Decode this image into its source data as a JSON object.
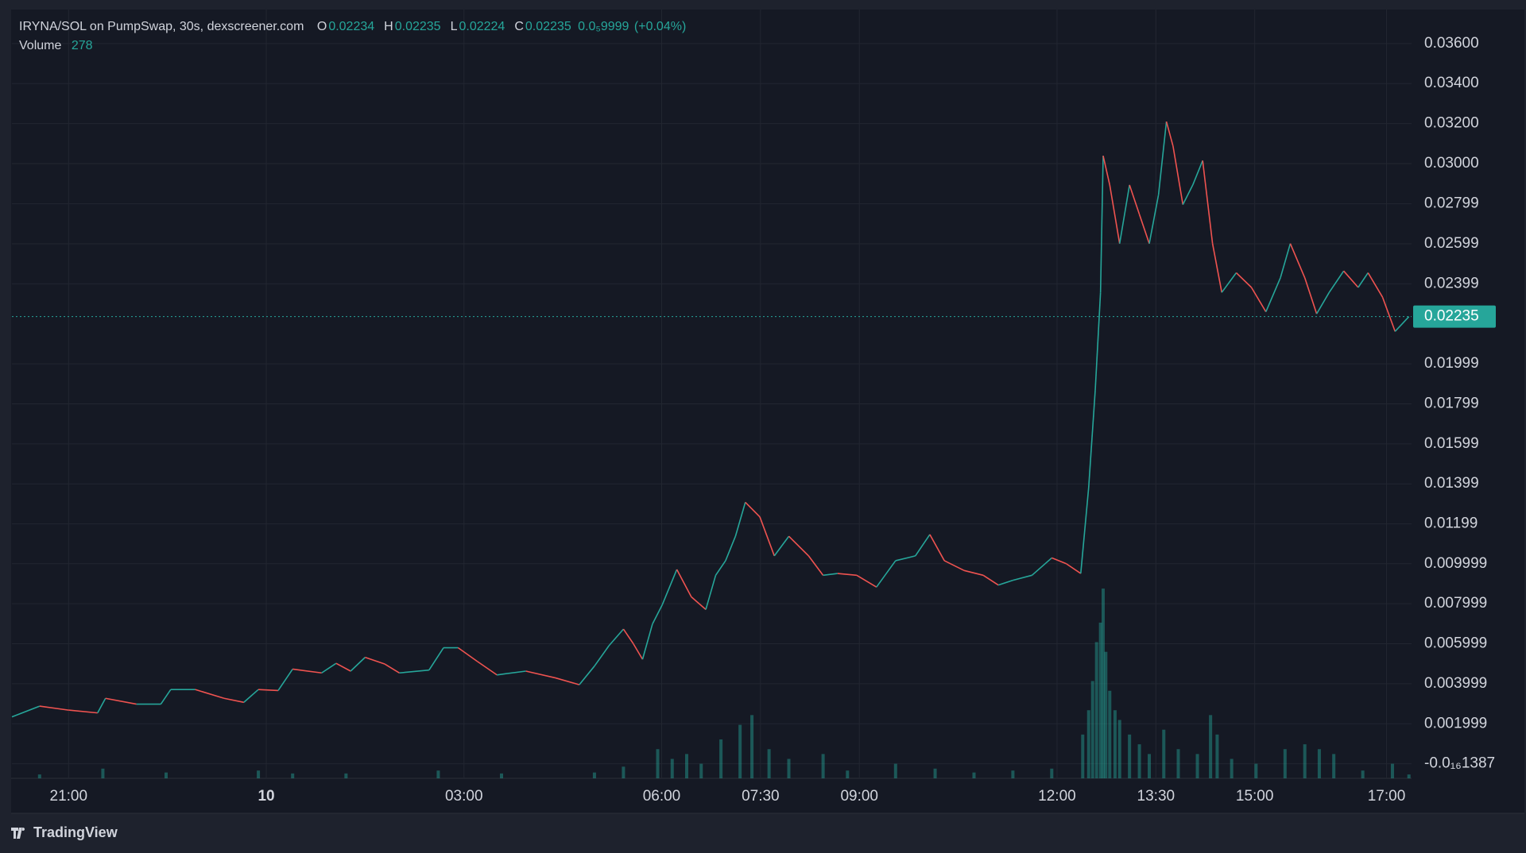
{
  "chart_data": {
    "type": "line",
    "title": "IRYNA/SOL on PumpSwap, 30s, dexscreener.com",
    "ohlc": [
      {
        "label": "O",
        "value": 0.02234
      },
      {
        "label": "H",
        "value": 0.02235
      },
      {
        "label": "L",
        "value": 0.02224
      },
      {
        "label": "C",
        "value": 0.02235
      }
    ],
    "change": {
      "value": 9.999e-06,
      "label": "0.0₅9999"
    },
    "change_percent": {
      "value": 0.04,
      "label": "(+0.04%)"
    },
    "volume_label": "Volume",
    "volume_last": 278,
    "last_price": 0.02235,
    "up_color": "#26a69a",
    "down_color": "#ef5350",
    "grid": true,
    "xlim": [
      20.14,
      41.38
    ],
    "xticks": [
      {
        "value": 21,
        "label": "21:00"
      },
      {
        "value": 24,
        "label": "10"
      },
      {
        "value": 27,
        "label": "03:00"
      },
      {
        "value": 30,
        "label": "06:00"
      },
      {
        "value": 31.5,
        "label": "07:30"
      },
      {
        "value": 33,
        "label": "09:00"
      },
      {
        "value": 36,
        "label": "12:00"
      },
      {
        "value": 37.5,
        "label": "13:30"
      },
      {
        "value": 39,
        "label": "15:00"
      },
      {
        "value": 41,
        "label": "17:00"
      }
    ],
    "ylim": [
      -0.00073,
      0.0377
    ],
    "yticks": [
      {
        "value": 0.036,
        "label": "0.03600"
      },
      {
        "value": 0.034,
        "label": "0.03400"
      },
      {
        "value": 0.032,
        "label": "0.03200"
      },
      {
        "value": 0.03,
        "label": "0.03000"
      },
      0.02799,
      0.02599,
      0.02399,
      0.01999,
      0.01799,
      0.01599,
      0.01399,
      0.01199,
      0.009999,
      0.007999,
      0.005999,
      0.003999,
      0.001999,
      {
        "value": -1.387e-17,
        "label": "-0.0₁₆1387"
      }
    ],
    "y2lim": [
      0,
      55300
    ],
    "series": [
      {
        "name": "IRYNA/SOL",
        "type": "line",
        "axis": "y",
        "x": [
          20.14,
          20.56,
          21.0,
          21.44,
          21.56,
          22.03,
          22.4,
          22.55,
          22.92,
          23.36,
          23.66,
          23.88,
          24.18,
          24.4,
          24.84,
          25.06,
          25.28,
          25.5,
          25.8,
          26.02,
          26.47,
          26.69,
          26.91,
          27.2,
          27.5,
          27.94,
          28.39,
          28.75,
          28.98,
          29.2,
          29.42,
          29.57,
          29.71,
          29.86,
          30.01,
          30.23,
          30.45,
          30.67,
          30.82,
          30.97,
          31.12,
          31.27,
          31.49,
          31.71,
          31.93,
          32.23,
          32.45,
          32.67,
          32.96,
          33.26,
          33.55,
          33.85,
          34.07,
          34.29,
          34.59,
          34.88,
          35.11,
          35.33,
          35.62,
          35.92,
          36.14,
          36.36,
          36.48,
          36.58,
          36.66,
          36.7,
          36.8,
          36.95,
          37.1,
          37.25,
          37.4,
          37.54,
          37.66,
          37.76,
          37.91,
          38.06,
          38.21,
          38.36,
          38.5,
          38.72,
          38.95,
          39.17,
          39.39,
          39.54,
          39.76,
          39.94,
          40.13,
          40.35,
          40.57,
          40.72,
          40.94,
          41.13,
          41.34
        ],
        "values": [
          0.00234,
          0.00288,
          0.00268,
          0.00254,
          0.00327,
          0.00298,
          0.00298,
          0.00371,
          0.00371,
          0.00327,
          0.00307,
          0.00371,
          0.00366,
          0.00473,
          0.00454,
          0.00502,
          0.00463,
          0.00532,
          0.00498,
          0.00454,
          0.00468,
          0.0058,
          0.0058,
          0.00512,
          0.00444,
          0.00463,
          0.00429,
          0.00395,
          0.00488,
          0.0059,
          0.00673,
          0.006,
          0.00522,
          0.00698,
          0.00795,
          0.00971,
          0.00834,
          0.00771,
          0.00942,
          0.01015,
          0.01137,
          0.01307,
          0.01234,
          0.01039,
          0.01137,
          0.01039,
          0.00942,
          0.00951,
          0.00942,
          0.00883,
          0.01015,
          0.01039,
          0.01146,
          0.01015,
          0.00966,
          0.00942,
          0.00893,
          0.00917,
          0.00942,
          0.01029,
          0.01,
          0.00951,
          0.0138,
          0.01868,
          0.02356,
          0.03039,
          0.02893,
          0.026,
          0.02893,
          0.02746,
          0.026,
          0.02844,
          0.0321,
          0.03088,
          0.02795,
          0.02893,
          0.03015,
          0.026,
          0.02356,
          0.02454,
          0.02381,
          0.02259,
          0.02429,
          0.026,
          0.02429,
          0.02249,
          0.02356,
          0.02463,
          0.02381,
          0.02454,
          0.02332,
          0.02161,
          0.02235
        ]
      },
      {
        "name": "Volume",
        "type": "bar",
        "axis": "y2",
        "color": "#26a69a",
        "x": [
          20.56,
          21.52,
          22.48,
          23.88,
          24.4,
          25.21,
          26.61,
          27.57,
          28.98,
          29.42,
          29.94,
          30.16,
          30.38,
          30.6,
          30.9,
          31.19,
          31.37,
          31.63,
          31.93,
          32.45,
          32.82,
          33.55,
          34.15,
          34.74,
          35.33,
          35.92,
          36.39,
          36.48,
          36.54,
          36.6,
          36.66,
          36.7,
          36.74,
          36.8,
          36.88,
          36.95,
          37.1,
          37.25,
          37.4,
          37.62,
          37.84,
          38.13,
          38.33,
          38.43,
          38.65,
          39.02,
          39.46,
          39.76,
          39.98,
          40.2,
          40.64,
          41.09,
          41.34
        ],
        "values": [
          280,
          700,
          420,
          560,
          350,
          350,
          560,
          350,
          420,
          840,
          2100,
          1400,
          1750,
          1050,
          2800,
          3850,
          4550,
          2100,
          1400,
          1750,
          560,
          1050,
          700,
          420,
          560,
          700,
          3150,
          4900,
          7000,
          9800,
          11200,
          13650,
          9100,
          6300,
          4900,
          4200,
          3150,
          2450,
          1750,
          3500,
          2100,
          1750,
          4550,
          3150,
          1400,
          1050,
          2100,
          2450,
          2100,
          1750,
          560,
          1050,
          278
        ]
      }
    ]
  },
  "footer": "TradingView"
}
